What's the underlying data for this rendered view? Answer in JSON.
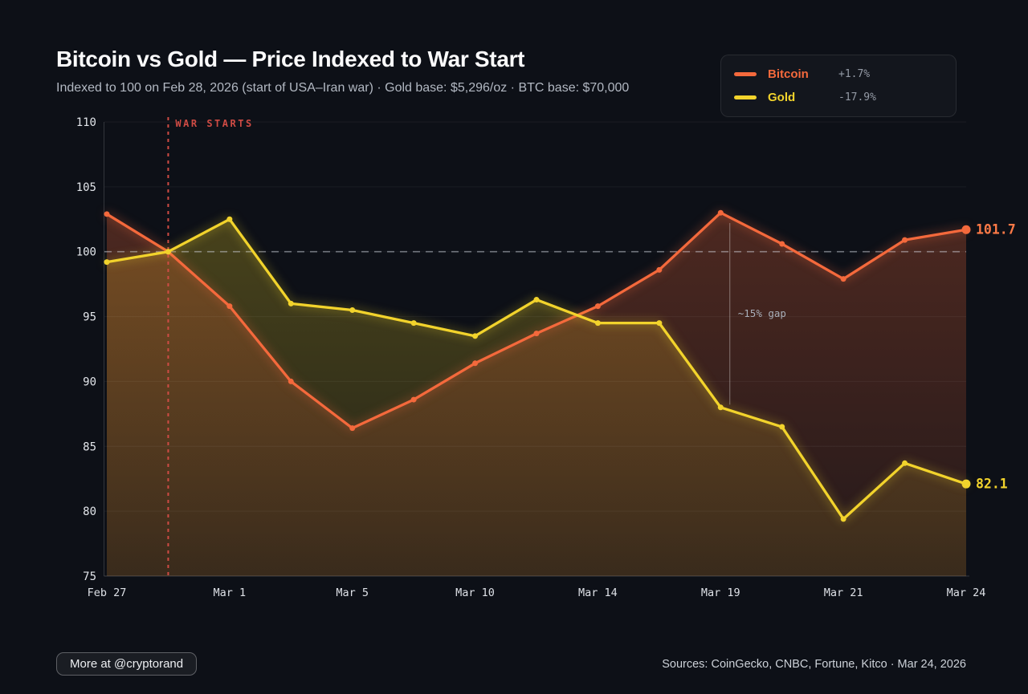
{
  "header": {
    "title": "Bitcoin vs Gold — Price Indexed to War Start",
    "subtitle": "Indexed to 100 on Feb 28, 2026 (start of USA–Iran war) · Gold base: $5,296/oz · BTC base: $70,000"
  },
  "legend": {
    "items": [
      {
        "name": "Bitcoin",
        "change": "+1.7%",
        "color": "#f4693c"
      },
      {
        "name": "Gold",
        "change": "-17.9%",
        "color": "#f2d32c"
      }
    ]
  },
  "chart_data": {
    "type": "line",
    "title": "Bitcoin vs Gold — Price Indexed to War Start",
    "ylim": [
      75,
      110
    ],
    "y_ticks": [
      75,
      80,
      85,
      90,
      95,
      100,
      105,
      110
    ],
    "baseline": 100,
    "grid": "horizontal-faint",
    "legend_position": "top-right",
    "x_ticks": [
      {
        "label": "Feb 27",
        "index": 0
      },
      {
        "label": "Mar 1",
        "index": 2
      },
      {
        "label": "Mar 5",
        "index": 4
      },
      {
        "label": "Mar 10",
        "index": 6
      },
      {
        "label": "Mar 14",
        "index": 8
      },
      {
        "label": "Mar 19",
        "index": 10
      },
      {
        "label": "Mar 21",
        "index": 12
      },
      {
        "label": "Mar 24",
        "index": 14
      }
    ],
    "series": [
      {
        "name": "Bitcoin",
        "color": "#f4693c",
        "glow": "rgba(244,105,60,0.65)",
        "fill_top": "rgba(242,104,56,0.32)",
        "fill_bottom": "rgba(242,104,56,0.10)",
        "end_label": "101.7",
        "end_label_color": "#ff7a47",
        "values": [
          102.9,
          100.0,
          95.8,
          90.0,
          86.4,
          88.6,
          91.4,
          93.7,
          95.8,
          98.6,
          103.0,
          100.6,
          97.9,
          100.9,
          101.7
        ]
      },
      {
        "name": "Gold",
        "color": "#f2d32c",
        "glow": "rgba(240,210,44,0.6)",
        "fill_top": "rgba(240,210,40,0.30)",
        "fill_bottom": "rgba(240,210,40,0.10)",
        "end_label": "82.1",
        "end_label_color": "#f2d32c",
        "values": [
          99.2,
          100.0,
          102.5,
          96.0,
          95.5,
          94.5,
          93.5,
          96.3,
          94.5,
          94.5,
          88.0,
          86.5,
          79.4,
          83.7,
          82.1
        ]
      }
    ],
    "annotations": {
      "war_line": {
        "label": "WAR STARTS",
        "x_index": 1,
        "color": "#cf4b44"
      },
      "gap": {
        "label": "~15% gap",
        "x_index": 10.15,
        "color": "#a9afb9"
      }
    }
  },
  "footer": {
    "button_label": "More at @cryptorand",
    "sources": "Sources: CoinGecko, CNBC, Fortune, Kitco · Mar 24, 2026"
  }
}
